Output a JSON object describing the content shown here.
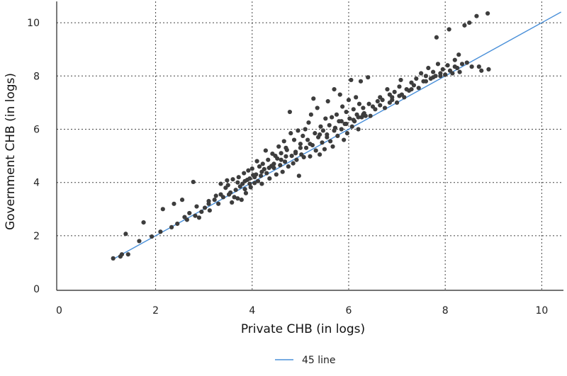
{
  "chart_data": {
    "type": "scatter",
    "title": "",
    "xlabel": "Private CHB (in logs)",
    "ylabel": "Government CHB (in logs)",
    "xlim": [
      -0.05,
      10.45
    ],
    "ylim": [
      -0.05,
      10.8
    ],
    "xticks": [
      0,
      2,
      4,
      6,
      8,
      10
    ],
    "yticks": [
      0,
      2,
      4,
      6,
      8,
      10
    ],
    "xtick_labels": [
      "0",
      "2",
      "4",
      "6",
      "8",
      "10"
    ],
    "ytick_labels": [
      "0",
      "2",
      "4",
      "6",
      "8",
      "10"
    ],
    "grid": true,
    "legend": {
      "placement": "bottom-center",
      "entries": [
        "45 line"
      ]
    },
    "reference_line": {
      "name": "45 line",
      "x": [
        1.1,
        10.4
      ],
      "y": [
        1.1,
        10.4
      ],
      "color": "#4a90d9"
    },
    "point_color": "#3d3d3d",
    "points": [
      [
        1.12,
        1.15
      ],
      [
        1.27,
        1.22
      ],
      [
        1.3,
        1.3
      ],
      [
        1.43,
        1.3
      ],
      [
        1.38,
        2.07
      ],
      [
        1.66,
        1.8
      ],
      [
        1.75,
        2.5
      ],
      [
        1.92,
        1.97
      ],
      [
        2.1,
        2.15
      ],
      [
        2.15,
        3.0
      ],
      [
        2.33,
        2.32
      ],
      [
        2.38,
        3.2
      ],
      [
        2.45,
        2.45
      ],
      [
        2.55,
        3.35
      ],
      [
        2.6,
        2.7
      ],
      [
        2.65,
        2.6
      ],
      [
        2.7,
        2.85
      ],
      [
        2.78,
        4.02
      ],
      [
        2.82,
        2.75
      ],
      [
        2.9,
        2.68
      ],
      [
        2.95,
        2.9
      ],
      [
        3.02,
        3.05
      ],
      [
        3.1,
        3.2
      ],
      [
        3.12,
        2.95
      ],
      [
        3.22,
        3.35
      ],
      [
        3.3,
        3.2
      ],
      [
        3.35,
        3.95
      ],
      [
        3.4,
        3.45
      ],
      [
        3.45,
        3.8
      ],
      [
        3.48,
        4.08
      ],
      [
        3.52,
        3.55
      ],
      [
        3.55,
        3.62
      ],
      [
        3.58,
        3.25
      ],
      [
        3.6,
        4.12
      ],
      [
        3.63,
        3.45
      ],
      [
        3.66,
        3.72
      ],
      [
        3.7,
        3.4
      ],
      [
        3.72,
        4.2
      ],
      [
        3.75,
        3.85
      ],
      [
        3.78,
        3.35
      ],
      [
        3.8,
        3.95
      ],
      [
        3.83,
        4.35
      ],
      [
        3.85,
        3.75
      ],
      [
        3.87,
        3.6
      ],
      [
        3.9,
        4.1
      ],
      [
        3.92,
        4.45
      ],
      [
        3.95,
        3.95
      ],
      [
        3.97,
        3.82
      ],
      [
        4.0,
        4.52
      ],
      [
        4.02,
        4.28
      ],
      [
        4.05,
        3.98
      ],
      [
        4.08,
        4.3
      ],
      [
        4.1,
        4.8
      ],
      [
        4.12,
        4.05
      ],
      [
        4.15,
        4.6
      ],
      [
        4.18,
        4.25
      ],
      [
        4.2,
        3.95
      ],
      [
        4.22,
        4.7
      ],
      [
        4.25,
        4.5
      ],
      [
        4.28,
        5.2
      ],
      [
        4.3,
        4.35
      ],
      [
        4.33,
        4.85
      ],
      [
        4.36,
        4.15
      ],
      [
        4.4,
        4.62
      ],
      [
        4.42,
        5.08
      ],
      [
        4.45,
        4.55
      ],
      [
        4.48,
        5.0
      ],
      [
        4.5,
        4.3
      ],
      [
        4.52,
        4.9
      ],
      [
        4.55,
        5.35
      ],
      [
        4.58,
        4.65
      ],
      [
        4.6,
        5.1
      ],
      [
        4.63,
        4.4
      ],
      [
        4.66,
        5.55
      ],
      [
        4.68,
        4.78
      ],
      [
        4.7,
        4.98
      ],
      [
        4.72,
        5.22
      ],
      [
        4.75,
        4.6
      ],
      [
        4.78,
        6.65
      ],
      [
        4.8,
        5.85
      ],
      [
        4.82,
        5.0
      ],
      [
        4.85,
        4.72
      ],
      [
        4.87,
        5.6
      ],
      [
        4.9,
        5.15
      ],
      [
        4.92,
        4.85
      ],
      [
        4.95,
        5.95
      ],
      [
        4.97,
        4.25
      ],
      [
        5.0,
        5.45
      ],
      [
        5.02,
        5.05
      ],
      [
        5.05,
        5.75
      ],
      [
        5.07,
        4.95
      ],
      [
        5.1,
        6.0
      ],
      [
        5.12,
        5.3
      ],
      [
        5.15,
        5.6
      ],
      [
        5.17,
        6.25
      ],
      [
        5.2,
        4.98
      ],
      [
        5.22,
        6.55
      ],
      [
        5.25,
        5.4
      ],
      [
        5.27,
        7.15
      ],
      [
        5.3,
        5.85
      ],
      [
        5.32,
        5.2
      ],
      [
        5.35,
        6.8
      ],
      [
        5.37,
        5.7
      ],
      [
        5.4,
        5.05
      ],
      [
        5.42,
        6.1
      ],
      [
        5.45,
        5.5
      ],
      [
        5.47,
        5.95
      ],
      [
        5.5,
        5.25
      ],
      [
        5.52,
        6.4
      ],
      [
        5.55,
        5.8
      ],
      [
        5.57,
        7.05
      ],
      [
        5.6,
        6.15
      ],
      [
        5.62,
        5.55
      ],
      [
        5.65,
        6.45
      ],
      [
        5.67,
        5.35
      ],
      [
        5.7,
        7.5
      ],
      [
        5.72,
        6.05
      ],
      [
        5.75,
        6.55
      ],
      [
        5.77,
        5.75
      ],
      [
        5.8,
        6.3
      ],
      [
        5.82,
        7.3
      ],
      [
        5.85,
        6.0
      ],
      [
        5.87,
        6.85
      ],
      [
        5.9,
        5.6
      ],
      [
        5.92,
        6.2
      ],
      [
        5.95,
        6.65
      ],
      [
        5.97,
        5.85
      ],
      [
        6.0,
        7.1
      ],
      [
        6.02,
        6.4
      ],
      [
        6.05,
        7.85
      ],
      [
        6.07,
        6.1
      ],
      [
        6.1,
        6.75
      ],
      [
        6.12,
        6.3
      ],
      [
        6.15,
        7.2
      ],
      [
        6.17,
        6.55
      ],
      [
        6.2,
        6.0
      ],
      [
        6.22,
        6.95
      ],
      [
        6.25,
        7.8
      ],
      [
        6.27,
        6.45
      ],
      [
        6.3,
        6.8
      ],
      [
        6.32,
        6.6
      ],
      [
        6.35,
        6.5
      ],
      [
        6.4,
        7.95
      ],
      [
        6.42,
        6.95
      ],
      [
        6.45,
        6.5
      ],
      [
        6.5,
        6.85
      ],
      [
        6.6,
        7.05
      ],
      [
        6.65,
        7.2
      ],
      [
        6.7,
        7.1
      ],
      [
        6.75,
        6.8
      ],
      [
        6.8,
        7.5
      ],
      [
        6.85,
        7.3
      ],
      [
        6.9,
        7.1
      ],
      [
        6.95,
        7.4
      ],
      [
        7.0,
        7.0
      ],
      [
        7.05,
        7.6
      ],
      [
        7.08,
        7.85
      ],
      [
        7.1,
        7.3
      ],
      [
        7.15,
        7.2
      ],
      [
        7.2,
        7.5
      ],
      [
        7.25,
        7.45
      ],
      [
        7.3,
        7.75
      ],
      [
        7.35,
        7.65
      ],
      [
        7.4,
        7.9
      ],
      [
        7.45,
        7.55
      ],
      [
        7.5,
        8.1
      ],
      [
        7.55,
        7.8
      ],
      [
        7.6,
        8.0
      ],
      [
        7.65,
        8.3
      ],
      [
        7.7,
        7.9
      ],
      [
        7.75,
        8.15
      ],
      [
        7.8,
        8.0
      ],
      [
        7.85,
        8.45
      ],
      [
        7.9,
        8.1
      ],
      [
        7.95,
        8.25
      ],
      [
        8.0,
        8.05
      ],
      [
        8.05,
        8.4
      ],
      [
        8.1,
        8.2
      ],
      [
        8.15,
        8.1
      ],
      [
        8.2,
        8.6
      ],
      [
        8.25,
        8.3
      ],
      [
        8.28,
        8.8
      ],
      [
        8.3,
        8.15
      ],
      [
        8.35,
        8.45
      ],
      [
        8.4,
        9.9
      ],
      [
        8.45,
        8.5
      ],
      [
        8.5,
        10.0
      ],
      [
        8.55,
        8.35
      ],
      [
        8.65,
        10.25
      ],
      [
        8.7,
        8.35
      ],
      [
        8.75,
        8.2
      ],
      [
        8.88,
        10.35
      ],
      [
        8.9,
        8.25
      ],
      [
        7.82,
        9.45
      ],
      [
        8.08,
        9.75
      ],
      [
        5.85,
        6.3
      ],
      [
        5.4,
        5.8
      ],
      [
        4.7,
        5.3
      ],
      [
        4.2,
        4.4
      ],
      [
        3.95,
        4.15
      ],
      [
        3.5,
        3.9
      ],
      [
        6.1,
        6.35
      ],
      [
        6.9,
        7.2
      ],
      [
        7.3,
        7.5
      ],
      [
        7.6,
        7.8
      ],
      [
        5.0,
        5.3
      ],
      [
        4.45,
        4.7
      ],
      [
        3.7,
        4.0
      ],
      [
        3.1,
        3.3
      ],
      [
        2.85,
        3.1
      ],
      [
        5.2,
        5.45
      ],
      [
        5.95,
        6.2
      ],
      [
        6.55,
        6.75
      ],
      [
        7.05,
        7.25
      ],
      [
        4.05,
        4.2
      ],
      [
        4.6,
        4.85
      ],
      [
        5.55,
        5.7
      ],
      [
        6.3,
        6.55
      ],
      [
        3.25,
        3.5
      ],
      [
        6.85,
        7.0
      ],
      [
        7.9,
        8.0
      ],
      [
        8.2,
        8.35
      ],
      [
        5.7,
        5.95
      ],
      [
        4.9,
        5.1
      ],
      [
        4.35,
        4.55
      ],
      [
        3.85,
        4.05
      ],
      [
        3.35,
        3.55
      ],
      [
        6.65,
        6.9
      ],
      [
        7.75,
        7.95
      ],
      [
        6.2,
        6.45
      ]
    ]
  }
}
